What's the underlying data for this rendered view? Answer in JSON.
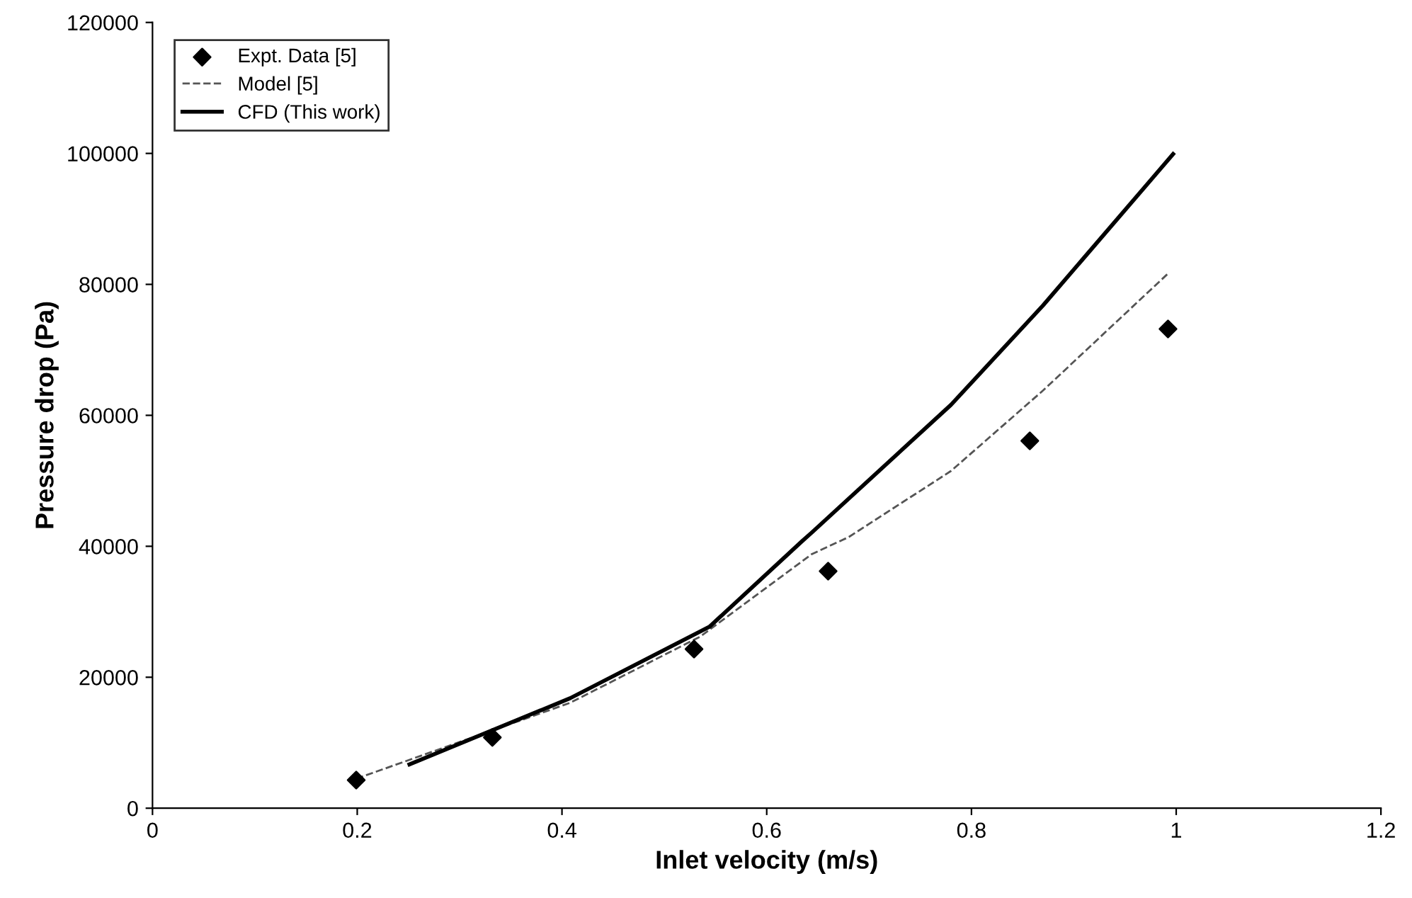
{
  "chart_data": {
    "type": "line",
    "xlabel": "Inlet velocity (m/s)",
    "ylabel": "Pressure drop (Pa)",
    "xlim": [
      0,
      1.2
    ],
    "xticks": [
      0,
      0.2,
      0.4,
      0.6,
      0.8,
      1,
      1.2
    ],
    "ylim": [
      0,
      120000
    ],
    "yticks": [
      0,
      20000,
      40000,
      60000,
      80000,
      100000,
      120000
    ],
    "grid": false,
    "legend": "top left",
    "series": [
      {
        "name": "Expt. Data [5]",
        "type": "scatter",
        "marker": "diamond",
        "color": "#000000",
        "x": [
          0.199,
          0.332,
          0.529,
          0.66,
          0.857,
          0.992
        ],
        "values": [
          4300,
          10800,
          24300,
          36200,
          56100,
          73200
        ]
      },
      {
        "name": "Model [5]",
        "line_style": "dashed",
        "color": "#555555",
        "x": [
          0.199,
          0.408,
          0.535,
          0.644,
          0.68,
          0.78,
          0.87,
          0.993
        ],
        "values": [
          4500,
          16100,
          26200,
          38800,
          41400,
          51500,
          63800,
          81800
        ]
      },
      {
        "name": "CFD (This work)",
        "line_style": "solid",
        "color": "#000000",
        "x": [
          0.251,
          0.408,
          0.544,
          0.634,
          0.644,
          0.78,
          0.87,
          0.997
        ],
        "values": [
          6700,
          16800,
          27700,
          40700,
          42100,
          61600,
          76800,
          99900
        ]
      }
    ]
  }
}
